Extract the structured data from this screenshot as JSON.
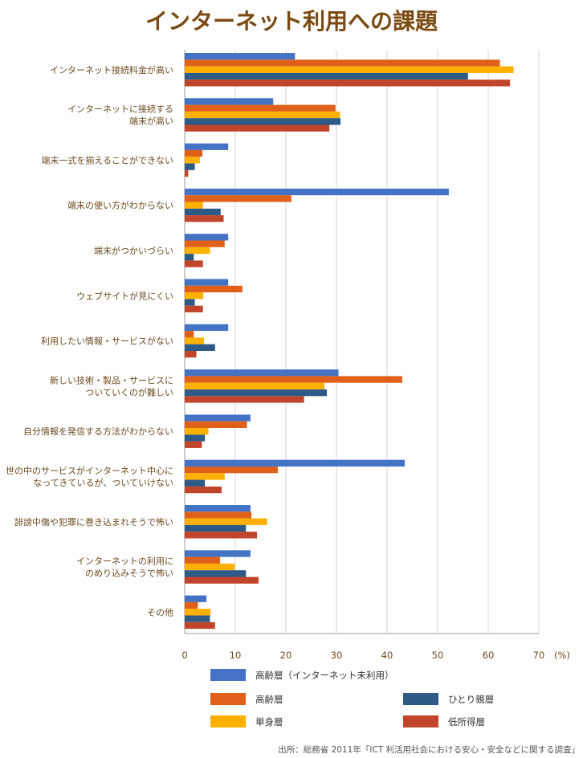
{
  "chart_data": {
    "type": "bar",
    "orientation": "horizontal",
    "title": "インターネット利用への課題",
    "unit": "(%)",
    "xlim": [
      0,
      70
    ],
    "xticks": [
      0,
      10,
      20,
      30,
      40,
      50,
      60,
      70
    ],
    "grid": true,
    "legend_placement": "bottom",
    "categories": [
      [
        "インターネット接続料金が高い"
      ],
      [
        "インターネットに接続する",
        "端末が高い"
      ],
      [
        "端末一式を揃えることができない"
      ],
      [
        "端末の使い方がわからない"
      ],
      [
        "端末がつかいづらい"
      ],
      [
        "ウェブサイトが見にくい"
      ],
      [
        "利用したい情報・サービスがない"
      ],
      [
        "新しい技術・製品・サービスに",
        "ついていくのが難しい"
      ],
      [
        "自分情報を発信する方法がわからない"
      ],
      [
        "世の中のサービスがインターネット中心に",
        "なってきているが、ついていけない"
      ],
      [
        "誹謗中傷や犯罪に巻き込まれそうで怖い"
      ],
      [
        "インターネットの利用に",
        "のめり込みそうで怖い"
      ],
      [
        "その他"
      ]
    ],
    "series": [
      {
        "name": "高齢層（インターネット未利用）",
        "color": "#4472c4",
        "values": [
          21.8,
          17.5,
          8.6,
          52.2,
          8.6,
          8.6,
          8.6,
          30.4,
          13.0,
          43.5,
          13.0,
          13.0,
          4.3
        ]
      },
      {
        "name": "高齢層",
        "color": "#e0601a",
        "values": [
          62.3,
          29.8,
          3.5,
          21.1,
          7.9,
          11.4,
          1.8,
          43.0,
          12.3,
          18.4,
          13.2,
          7.0,
          2.6
        ]
      },
      {
        "name": "単身層",
        "color": "#ffb000",
        "values": [
          65.0,
          30.7,
          3.0,
          3.6,
          5.0,
          3.7,
          3.8,
          27.6,
          4.7,
          7.9,
          16.3,
          9.9,
          5.1
        ]
      },
      {
        "name": "ひとり親層",
        "color": "#2e5a87",
        "values": [
          56.0,
          30.8,
          2.0,
          7.1,
          1.8,
          2.0,
          6.0,
          28.1,
          4.0,
          4.0,
          12.1,
          12.1,
          5.0
        ]
      },
      {
        "name": "低所得層",
        "color": "#c0452a",
        "values": [
          64.3,
          28.6,
          0.7,
          7.7,
          3.6,
          3.6,
          2.3,
          23.6,
          3.4,
          7.3,
          14.3,
          14.6,
          6.0
        ]
      }
    ],
    "source": "出所：総務省 2011年「ICT 利活用社会における安心・安全などに関する調査」"
  }
}
